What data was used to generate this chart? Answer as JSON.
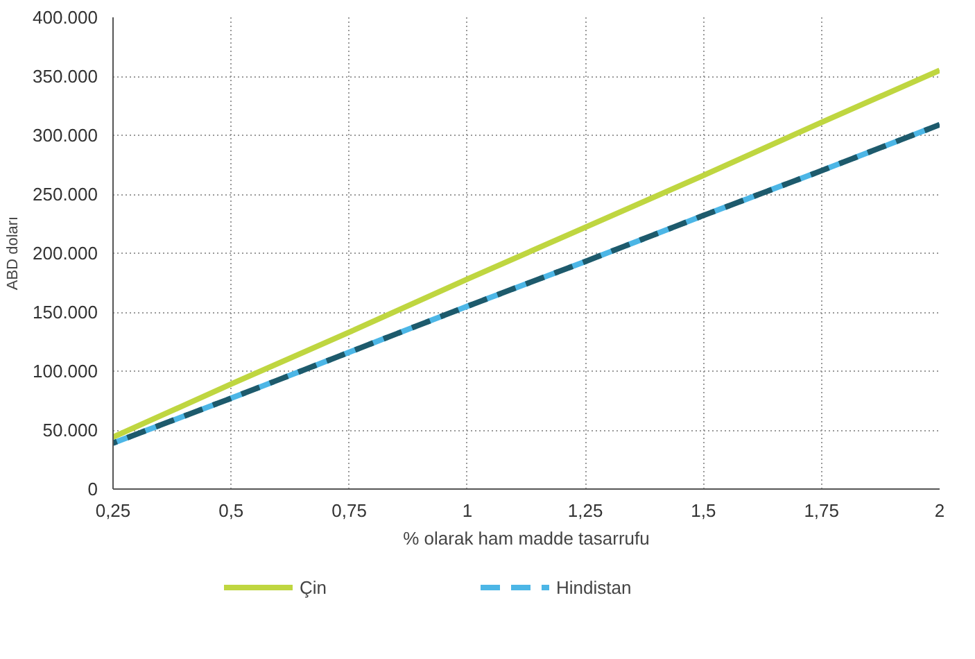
{
  "chart_data": {
    "type": "line",
    "xlabel": "% olarak ham madde tasarrufu",
    "ylabel": "ABD doları",
    "x": [
      0.25,
      0.5,
      0.75,
      1,
      1.25,
      1.5,
      1.75,
      2
    ],
    "series": [
      {
        "name": "Çin",
        "color": "#bfd640",
        "line_style": "solid",
        "values": [
          44000,
          89000,
          133000,
          178000,
          222000,
          266000,
          311000,
          355000
        ]
      },
      {
        "name": "Hindistan",
        "color": "#4cb6e6",
        "line_style": "dashed",
        "values": [
          39000,
          77000,
          116000,
          155000,
          193000,
          232000,
          270000,
          309000
        ]
      },
      {
        "color": "#1d5a6c",
        "line_style": "dashed",
        "values": [
          39000,
          77000,
          116000,
          155000,
          193000,
          232000,
          270000,
          309000
        ]
      }
    ],
    "xlim": [
      0.25,
      2
    ],
    "xticks": [
      {
        "value": 0.25,
        "label": "0,25"
      },
      {
        "value": 0.5,
        "label": "0,5"
      },
      {
        "value": 0.75,
        "label": "0,75"
      },
      1,
      {
        "value": 1.25,
        "label": "1,25"
      },
      {
        "value": 1.5,
        "label": "1,5"
      },
      {
        "value": 1.75,
        "label": "1,75"
      },
      2
    ],
    "ylim": [
      0,
      400000
    ],
    "yticks": [
      0,
      {
        "value": 50000,
        "label": "50.000"
      },
      {
        "value": 100000,
        "label": "100.000"
      },
      {
        "value": 150000,
        "label": "150.000"
      },
      {
        "value": 200000,
        "label": "200.000"
      },
      {
        "value": 250000,
        "label": "250.000"
      },
      {
        "value": 300000,
        "label": "300.000"
      },
      {
        "value": 350000,
        "label": "350.000"
      },
      {
        "value": 400000,
        "label": "400.000"
      }
    ],
    "grid": true,
    "legend": "bottom",
    "marker": "none"
  }
}
